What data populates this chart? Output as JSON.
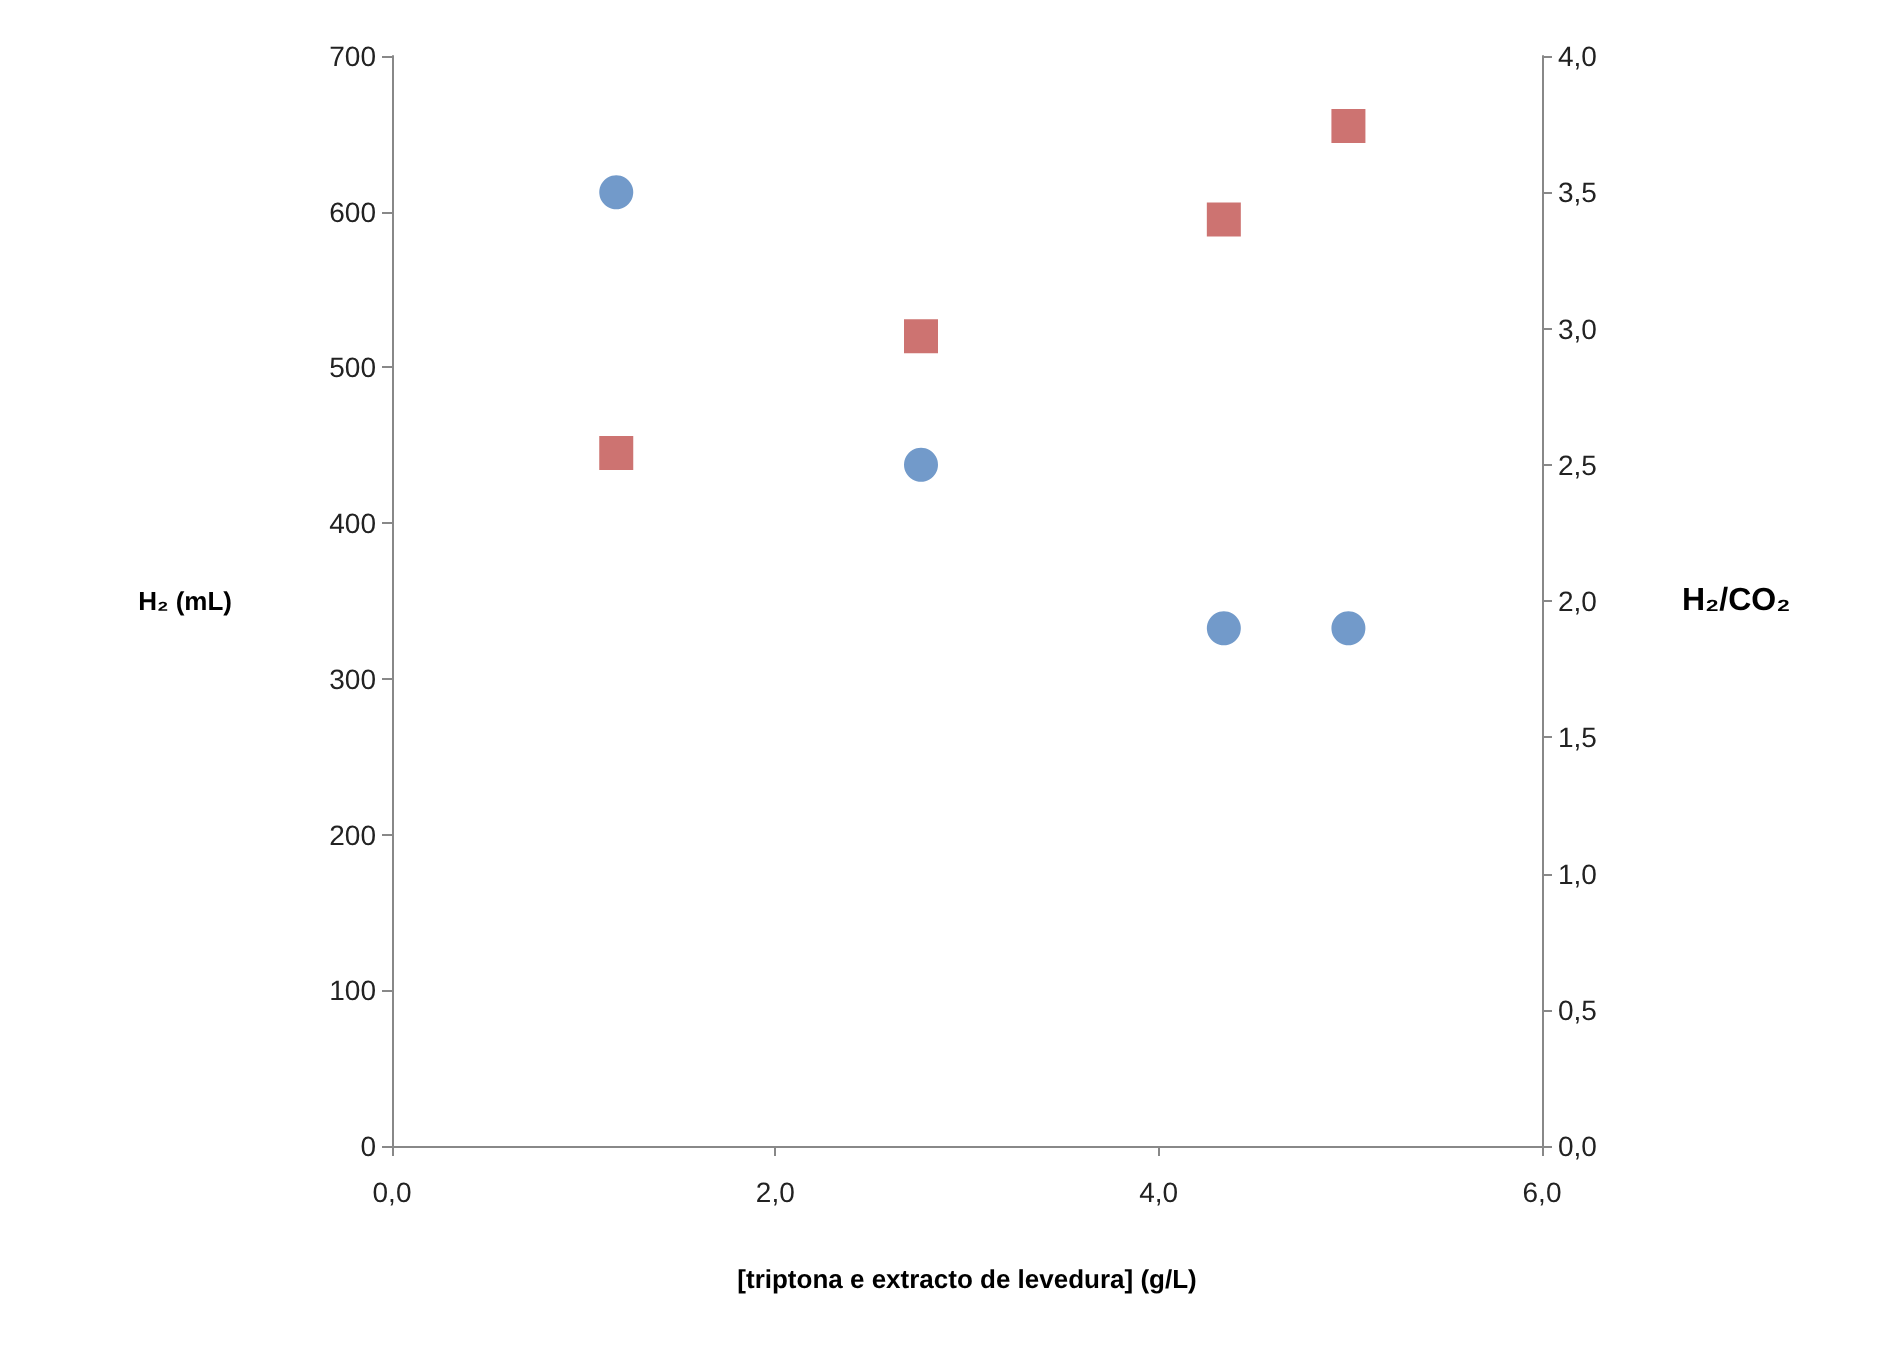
{
  "chart_data": {
    "type": "scatter",
    "xlabel": "[triptona e extracto de levedura] (g/L)",
    "ylabel": "H₂ (mL)",
    "y2label": "H₂/CO₂",
    "xlim": [
      0,
      6
    ],
    "xticks": [
      {
        "value": 0,
        "label": "0,0"
      },
      {
        "value": 2,
        "label": "2,0"
      },
      {
        "value": 4,
        "label": "4,0"
      },
      {
        "value": 6,
        "label": "6,0"
      }
    ],
    "ylim": [
      0,
      700
    ],
    "yticks": [
      0,
      100,
      200,
      300,
      400,
      500,
      600,
      700
    ],
    "y2lim": [
      0,
      4
    ],
    "y2ticks": [
      {
        "value": 0,
        "label": "0,0"
      },
      {
        "value": 0.5,
        "label": "0,5"
      },
      {
        "value": 1,
        "label": "1,0"
      },
      {
        "value": 1.5,
        "label": "1,5"
      },
      {
        "value": 2,
        "label": "2,0"
      },
      {
        "value": 2.5,
        "label": "2,5"
      },
      {
        "value": 3,
        "label": "3,0"
      },
      {
        "value": 3.5,
        "label": "3,5"
      },
      {
        "value": 4,
        "label": "4,0"
      }
    ],
    "grid": false,
    "series": [
      {
        "color": "#c0504d",
        "marker": "square",
        "x": [
          1.17,
          2.76,
          4.34,
          4.99
        ],
        "values": [
          445,
          520,
          595,
          655
        ]
      },
      {
        "color": "#4f81bd",
        "marker": "circle",
        "axis": "y2",
        "x": [
          1.17,
          2.76,
          4.34,
          4.99
        ],
        "values": [
          3.5,
          2.5,
          1.9,
          1.9
        ]
      }
    ]
  }
}
